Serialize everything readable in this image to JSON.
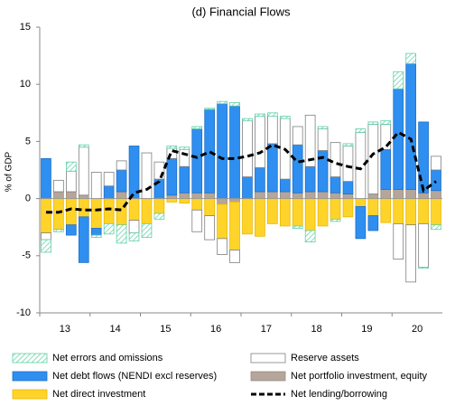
{
  "chart_data": {
    "type": "stacked-bar-line",
    "title": "(d) Financial Flows",
    "ylabel": "% of GDP",
    "categories": [
      null,
      "13",
      null,
      null,
      null,
      "14",
      null,
      null,
      null,
      "15",
      null,
      null,
      null,
      "16",
      null,
      null,
      null,
      "17",
      null,
      null,
      null,
      "18",
      null,
      null,
      null,
      "19",
      null,
      null,
      null,
      "20",
      null,
      null
    ],
    "ylim": [
      -10,
      15
    ],
    "yticks": [
      -10,
      -5,
      0,
      5,
      10,
      15
    ],
    "series": [
      {
        "name": "Net errors and omissions",
        "kind": "bar",
        "pattern": "hatch",
        "color": "#5fd0a6",
        "edgecolor": "#5fd0a6",
        "values": [
          -1.1,
          -0.2,
          0.8,
          0.2,
          -0.2,
          -0.9,
          -1.6,
          -0.7,
          -1.2,
          -0.5,
          0.2,
          0.2,
          0.2,
          0.1,
          0.2,
          0.3,
          0.2,
          0.2,
          0.3,
          0.2,
          -0.2,
          -1.0,
          0.2,
          -0.2,
          0.2,
          0.3,
          0.2,
          0.3,
          1.5,
          0.9,
          -0.1,
          -0.4
        ]
      },
      {
        "name": "Reserve assets",
        "kind": "bar",
        "color": "#ffffff",
        "edgecolor": "#7f7f7f",
        "values": [
          -0.6,
          1.0,
          1.8,
          4.2,
          2.3,
          1.2,
          0.8,
          -1.1,
          4.0,
          1.5,
          0.9,
          1.5,
          -1.9,
          -2.1,
          -1.4,
          -1.1,
          4.9,
          4.5,
          2.4,
          5.3,
          1.6,
          4.5,
          1.9,
          3.0,
          3.1,
          5.8,
          6.1,
          2.2,
          -3.1,
          -5.0,
          -3.8,
          1.2
        ]
      },
      {
        "name": "Net debt flows (NENDI excl reserves)",
        "kind": "bar",
        "color": "#2f8ff0",
        "edgecolor": "#1f6fc8",
        "values": [
          3.5,
          0,
          -0.9,
          -4.0,
          -0.6,
          1.1,
          1.9,
          4.6,
          0,
          1.7,
          3.2,
          2.3,
          5.6,
          7.3,
          8.3,
          8.1,
          1.9,
          2.1,
          4.2,
          1.1,
          4.2,
          2.2,
          3.6,
          1.4,
          1.1,
          -2.8,
          -1.3,
          3.5,
          8.8,
          11.0,
          6.2,
          1.8
        ]
      },
      {
        "name": "Net portfolio investment, equity",
        "kind": "bar",
        "color": "#b5a59a",
        "edgecolor": "#9c8c81",
        "values": [
          0,
          0.6,
          0.6,
          0.3,
          0,
          0,
          0.6,
          0,
          0,
          0,
          0.3,
          0.5,
          0.5,
          0.5,
          -0.5,
          -0.3,
          0,
          0.6,
          0.6,
          0.6,
          0.5,
          0.6,
          0.6,
          0.5,
          0.4,
          0,
          0.4,
          0.8,
          0.8,
          0.8,
          0.5,
          0.7
        ]
      },
      {
        "name": "Net direct investment",
        "kind": "bar",
        "color": "#ffd42a",
        "edgecolor": "#e8b800",
        "values": [
          -3.0,
          -2.7,
          -2.3,
          -1.6,
          -2.6,
          -2.2,
          -2.3,
          -1.9,
          -2.2,
          -1.3,
          -0.3,
          -0.4,
          -1.0,
          -1.5,
          -3.0,
          -4.2,
          -3.1,
          -3.3,
          -2.2,
          -2.4,
          -2.4,
          -2.8,
          -2.4,
          -1.8,
          -1.6,
          -0.7,
          -1.5,
          -2.1,
          -2.2,
          -2.3,
          -2.2,
          -2.3
        ]
      },
      {
        "name": "Net lending/borrowing",
        "kind": "line",
        "color": "#000000",
        "values": [
          -1.2,
          -1.2,
          -0.9,
          -1.0,
          -1.0,
          -0.9,
          -1.0,
          0.5,
          0.8,
          1.5,
          4.2,
          3.9,
          3.6,
          4.1,
          3.5,
          3.5,
          3.7,
          4.0,
          4.7,
          4.3,
          3.2,
          3.4,
          3.6,
          3.1,
          2.8,
          2.6,
          3.9,
          4.5,
          5.8,
          5.2,
          0.7,
          1.5
        ]
      }
    ]
  }
}
